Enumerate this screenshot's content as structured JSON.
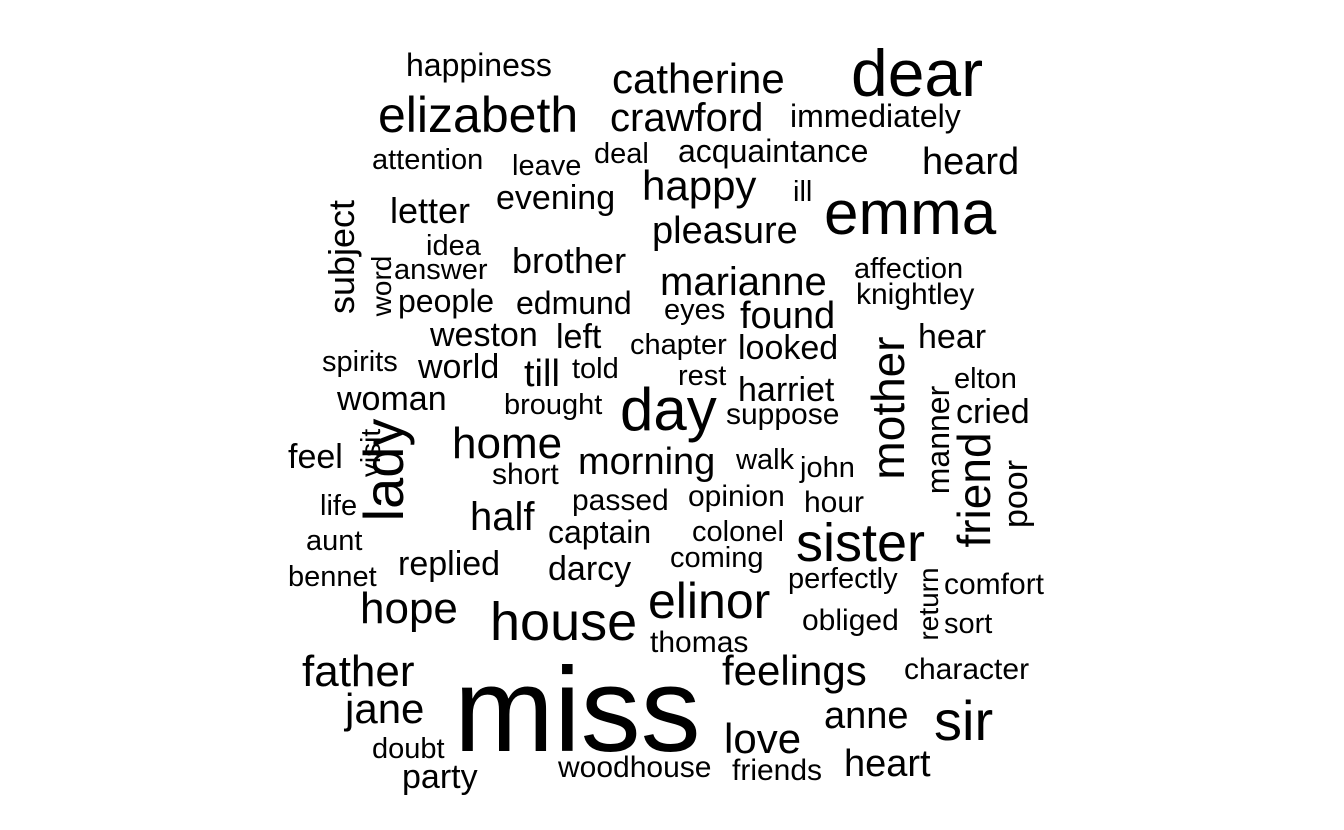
{
  "word_cloud": {
    "text_color": "#000000",
    "background_color": "#ffffff",
    "words": [
      {
        "text": "miss",
        "weight": 100
      },
      {
        "text": "dear",
        "weight": 60
      },
      {
        "text": "emma",
        "weight": 56
      },
      {
        "text": "day",
        "weight": 52
      },
      {
        "text": "sister",
        "weight": 50
      },
      {
        "text": "lady",
        "weight": 50
      },
      {
        "text": "house",
        "weight": 50
      },
      {
        "text": "elinor",
        "weight": 47
      },
      {
        "text": "sir",
        "weight": 50
      },
      {
        "text": "elizabeth",
        "weight": 50
      },
      {
        "text": "friend",
        "weight": 45
      },
      {
        "text": "mother",
        "weight": 45
      },
      {
        "text": "catherine",
        "weight": 43
      },
      {
        "text": "home",
        "weight": 43
      },
      {
        "text": "father",
        "weight": 43
      },
      {
        "text": "hope",
        "weight": 43
      },
      {
        "text": "happy",
        "weight": 42
      },
      {
        "text": "feelings",
        "weight": 42
      },
      {
        "text": "crawford",
        "weight": 40
      },
      {
        "text": "marianne",
        "weight": 40
      },
      {
        "text": "half",
        "weight": 40
      },
      {
        "text": "jane",
        "weight": 40
      },
      {
        "text": "love",
        "weight": 40
      },
      {
        "text": "heart",
        "weight": 38
      },
      {
        "text": "anne",
        "weight": 38
      },
      {
        "text": "pleasure",
        "weight": 38
      },
      {
        "text": "heard",
        "weight": 38
      },
      {
        "text": "morning",
        "weight": 38
      },
      {
        "text": "found",
        "weight": 38
      },
      {
        "text": "brother",
        "weight": 35
      },
      {
        "text": "letter",
        "weight": 35
      },
      {
        "text": "subject",
        "weight": 35
      },
      {
        "text": "harriet",
        "weight": 34
      },
      {
        "text": "darcy",
        "weight": 34
      },
      {
        "text": "looked",
        "weight": 34
      },
      {
        "text": "cried",
        "weight": 32
      },
      {
        "text": "poor",
        "weight": 32
      },
      {
        "text": "hear",
        "weight": 32
      },
      {
        "text": "woman",
        "weight": 32
      },
      {
        "text": "weston",
        "weight": 32
      },
      {
        "text": "world",
        "weight": 32
      },
      {
        "text": "evening",
        "weight": 32
      },
      {
        "text": "replied",
        "weight": 32
      },
      {
        "text": "edmund",
        "weight": 30
      },
      {
        "text": "till",
        "weight": 32
      },
      {
        "text": "left",
        "weight": 32
      },
      {
        "text": "party",
        "weight": 32
      },
      {
        "text": "manner",
        "weight": 30
      },
      {
        "text": "feel",
        "weight": 32
      },
      {
        "text": "captain",
        "weight": 30
      },
      {
        "text": "knightley",
        "weight": 30
      },
      {
        "text": "suppose",
        "weight": 30
      },
      {
        "text": "happiness",
        "weight": 30
      },
      {
        "text": "immediately",
        "weight": 30
      },
      {
        "text": "people",
        "weight": 30
      },
      {
        "text": "acquaintance",
        "weight": 30
      },
      {
        "text": "passed",
        "weight": 28
      },
      {
        "text": "opinion",
        "weight": 28
      },
      {
        "text": "hour",
        "weight": 28
      },
      {
        "text": "short",
        "weight": 28
      },
      {
        "text": "woodhouse",
        "weight": 28
      },
      {
        "text": "friends",
        "weight": 28
      },
      {
        "text": "character",
        "weight": 28
      },
      {
        "text": "comfort",
        "weight": 28
      },
      {
        "text": "obliged",
        "weight": 28
      },
      {
        "text": "thomas",
        "weight": 28
      },
      {
        "text": "bennet",
        "weight": 27
      },
      {
        "text": "brought",
        "weight": 27
      },
      {
        "text": "attention",
        "weight": 27
      },
      {
        "text": "leave",
        "weight": 27
      },
      {
        "text": "deal",
        "weight": 27
      },
      {
        "text": "ill",
        "weight": 27
      },
      {
        "text": "affection",
        "weight": 27
      },
      {
        "text": "eyes",
        "weight": 27
      },
      {
        "text": "chapter",
        "weight": 27
      },
      {
        "text": "rest",
        "weight": 27
      },
      {
        "text": "told",
        "weight": 27
      },
      {
        "text": "spirits",
        "weight": 27
      },
      {
        "text": "elton",
        "weight": 27
      },
      {
        "text": "answer",
        "weight": 27
      },
      {
        "text": "idea",
        "weight": 27
      },
      {
        "text": "word",
        "weight": 27
      },
      {
        "text": "visit",
        "weight": 27
      },
      {
        "text": "walk",
        "weight": 27
      },
      {
        "text": "john",
        "weight": 27
      },
      {
        "text": "colonel",
        "weight": 27
      },
      {
        "text": "coming",
        "weight": 27
      },
      {
        "text": "perfectly",
        "weight": 27
      },
      {
        "text": "return",
        "weight": 27
      },
      {
        "text": "sort",
        "weight": 27
      },
      {
        "text": "life",
        "weight": 27
      },
      {
        "text": "aunt",
        "weight": 27
      },
      {
        "text": "doubt",
        "weight": 27
      }
    ]
  }
}
